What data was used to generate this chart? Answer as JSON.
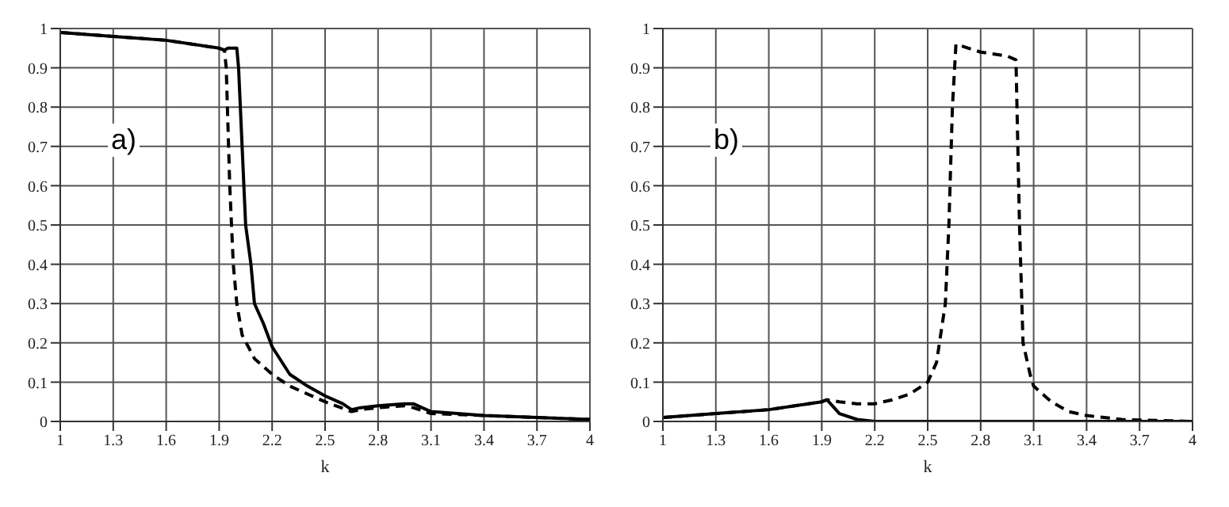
{
  "chart_data": [
    {
      "type": "line",
      "xlabel": "k",
      "annotations": [
        "a)"
      ],
      "xlim": [
        1,
        4
      ],
      "xticks": [
        1,
        1.3,
        1.6,
        1.9,
        2.2,
        2.5,
        2.8,
        3.1,
        3.4,
        3.7,
        4
      ],
      "ylim": [
        0,
        1
      ],
      "yticks": [
        0,
        0.1,
        0.2,
        0.3,
        0.4,
        0.5,
        0.6,
        0.7,
        0.8,
        0.9,
        1
      ],
      "grid": true,
      "series": [
        {
          "color": "#000000",
          "line_style": "solid",
          "x": [
            1,
            1.3,
            1.6,
            1.9,
            1.93,
            1.95,
            2.0,
            2.01,
            2.03,
            2.05,
            2.08,
            2.1,
            2.15,
            2.2,
            2.3,
            2.4,
            2.5,
            2.6,
            2.65,
            2.7,
            2.8,
            2.95,
            3.0,
            3.1,
            3.4,
            3.7,
            4
          ],
          "values": [
            0.99,
            0.98,
            0.97,
            0.95,
            0.945,
            0.95,
            0.95,
            0.9,
            0.7,
            0.5,
            0.4,
            0.3,
            0.25,
            0.19,
            0.12,
            0.09,
            0.065,
            0.045,
            0.03,
            0.035,
            0.04,
            0.045,
            0.045,
            0.025,
            0.015,
            0.01,
            0.005
          ]
        },
        {
          "color": "#000000",
          "line_style": "dashed",
          "x": [
            1,
            1.3,
            1.6,
            1.9,
            1.93,
            1.94,
            1.96,
            1.98,
            2.0,
            2.03,
            2.1,
            2.2,
            2.3,
            2.5,
            2.65,
            2.7,
            2.8,
            2.95,
            3.0,
            3.1,
            3.4,
            4
          ],
          "values": [
            0.99,
            0.98,
            0.97,
            0.95,
            0.945,
            0.9,
            0.6,
            0.4,
            0.3,
            0.22,
            0.16,
            0.12,
            0.09,
            0.05,
            0.025,
            0.03,
            0.035,
            0.04,
            0.035,
            0.02,
            0.015,
            0.005
          ]
        }
      ]
    },
    {
      "type": "line",
      "xlabel": "k",
      "annotations": [
        "b)"
      ],
      "xlim": [
        1,
        4
      ],
      "xticks": [
        1,
        1.3,
        1.6,
        1.9,
        2.2,
        2.5,
        2.8,
        3.1,
        3.4,
        3.7,
        4
      ],
      "ylim": [
        0,
        1
      ],
      "yticks": [
        0,
        0.1,
        0.2,
        0.3,
        0.4,
        0.5,
        0.6,
        0.7,
        0.8,
        0.9,
        1
      ],
      "grid": true,
      "series": [
        {
          "color": "#000000",
          "line_style": "solid",
          "x": [
            1,
            1.3,
            1.6,
            1.9,
            1.93,
            1.96,
            2.0,
            2.1,
            2.2,
            4
          ],
          "values": [
            0.01,
            0.02,
            0.03,
            0.05,
            0.055,
            0.04,
            0.02,
            0.005,
            0,
            0
          ]
        },
        {
          "color": "#000000",
          "line_style": "dashed",
          "x": [
            1,
            1.3,
            1.6,
            1.9,
            1.93,
            2.0,
            2.1,
            2.2,
            2.3,
            2.4,
            2.5,
            2.55,
            2.6,
            2.62,
            2.64,
            2.66,
            2.8,
            2.95,
            3.0,
            3.02,
            3.04,
            3.08,
            3.1,
            3.2,
            3.3,
            3.4,
            3.6,
            4
          ],
          "values": [
            0.01,
            0.02,
            0.03,
            0.05,
            0.055,
            0.05,
            0.045,
            0.045,
            0.055,
            0.07,
            0.1,
            0.15,
            0.3,
            0.5,
            0.8,
            0.96,
            0.94,
            0.93,
            0.92,
            0.5,
            0.2,
            0.12,
            0.09,
            0.05,
            0.025,
            0.015,
            0.005,
            0
          ]
        }
      ]
    }
  ]
}
